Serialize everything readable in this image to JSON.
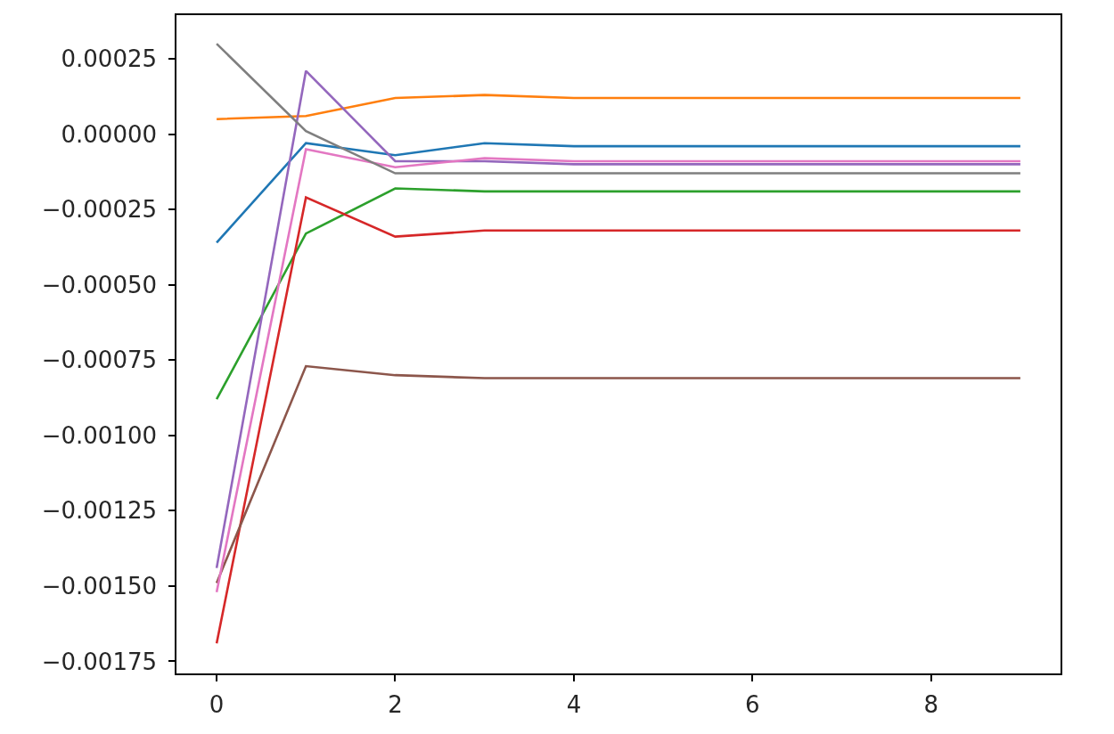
{
  "chart_data": {
    "type": "line",
    "x": [
      0,
      1,
      2,
      3,
      4,
      5,
      6,
      7,
      8,
      9
    ],
    "series": [
      {
        "color": "#1f77b4",
        "values": [
          -0.00036,
          -3e-05,
          -7e-05,
          -3e-05,
          -4e-05,
          -4e-05,
          -4e-05,
          -4e-05,
          -4e-05,
          -4e-05
        ]
      },
      {
        "color": "#ff7f0e",
        "values": [
          5e-05,
          6e-05,
          0.00012,
          0.00013,
          0.00012,
          0.00012,
          0.00012,
          0.00012,
          0.00012,
          0.00012
        ]
      },
      {
        "color": "#2ca02c",
        "values": [
          -0.00088,
          -0.00033,
          -0.00018,
          -0.00019,
          -0.00019,
          -0.00019,
          -0.00019,
          -0.00019,
          -0.00019,
          -0.00019
        ]
      },
      {
        "color": "#d62728",
        "values": [
          -0.00169,
          -0.00021,
          -0.00034,
          -0.00032,
          -0.00032,
          -0.00032,
          -0.00032,
          -0.00032,
          -0.00032,
          -0.00032
        ]
      },
      {
        "color": "#9467bd",
        "values": [
          -0.00144,
          0.00021,
          -9e-05,
          -9e-05,
          -0.0001,
          -0.0001,
          -0.0001,
          -0.0001,
          -0.0001,
          -0.0001
        ]
      },
      {
        "color": "#8c564b",
        "values": [
          -0.00149,
          -0.00077,
          -0.0008,
          -0.00081,
          -0.00081,
          -0.00081,
          -0.00081,
          -0.00081,
          -0.00081,
          -0.00081
        ]
      },
      {
        "color": "#e377c2",
        "values": [
          -0.00152,
          -5e-05,
          -0.00011,
          -8e-05,
          -9e-05,
          -9e-05,
          -9e-05,
          -9e-05,
          -9e-05,
          -9e-05
        ]
      },
      {
        "color": "#7f7f7f",
        "values": [
          0.0003,
          1e-05,
          -0.00013,
          -0.00013,
          -0.00013,
          -0.00013,
          -0.00013,
          -0.00013,
          -0.00013,
          -0.00013
        ]
      }
    ],
    "xlim": [
      -0.45,
      9.45
    ],
    "ylim": [
      -0.00179,
      0.000395
    ],
    "xticks": [
      0,
      2,
      4,
      6,
      8
    ],
    "yticks": [
      {
        "value": 0.00025,
        "label": "0.00025"
      },
      {
        "value": 0,
        "label": "0.00000"
      },
      {
        "value": -0.00025,
        "label": "−0.00025"
      },
      {
        "value": -0.0005,
        "label": "−0.00050"
      },
      {
        "value": -0.00075,
        "label": "−0.00075"
      },
      {
        "value": -0.001,
        "label": "−0.00100"
      },
      {
        "value": -0.00125,
        "label": "−0.00125"
      },
      {
        "value": -0.0015,
        "label": "−0.00150"
      },
      {
        "value": -0.00175,
        "label": "−0.00175"
      }
    ],
    "grid": false,
    "marker": "none",
    "line_style": "solid"
  }
}
